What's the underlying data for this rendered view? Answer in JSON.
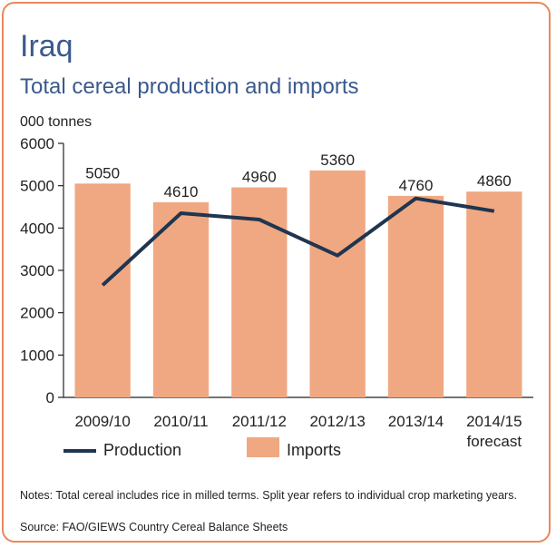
{
  "title": "Iraq",
  "subtitle": "Total cereal production and imports",
  "unit_label": "000 tonnes",
  "legend": {
    "production": "Production",
    "imports": "Imports"
  },
  "notes": "Notes: Total cereal includes rice in milled terms. Split year refers to individual crop marketing years.",
  "source": "Source: FAO/GIEWS Country Cereal Balance Sheets",
  "colors": {
    "bar": "#f0a882",
    "line": "#1f3550",
    "frame": "#e8885a",
    "title": "#3a5a8c"
  },
  "chart_data": {
    "type": "bar",
    "categories": [
      "2009/10",
      "2010/11",
      "2011/12",
      "2012/13",
      "2013/14",
      "2014/15"
    ],
    "category_sublabels": [
      "",
      "",
      "",
      "",
      "",
      "forecast"
    ],
    "yticks": [
      "0",
      "1000",
      "2000",
      "3000",
      "4000",
      "5000",
      "6000"
    ],
    "ylim": [
      0,
      6000
    ],
    "series": [
      {
        "name": "Imports",
        "type": "bar",
        "values": [
          5050,
          4610,
          4960,
          5360,
          4760,
          4860
        ],
        "labels": [
          "5050",
          "4610",
          "4960",
          "5360",
          "4760",
          "4860"
        ]
      },
      {
        "name": "Production",
        "type": "line",
        "values": [
          2650,
          4350,
          4200,
          3350,
          4700,
          4400
        ]
      }
    ]
  }
}
